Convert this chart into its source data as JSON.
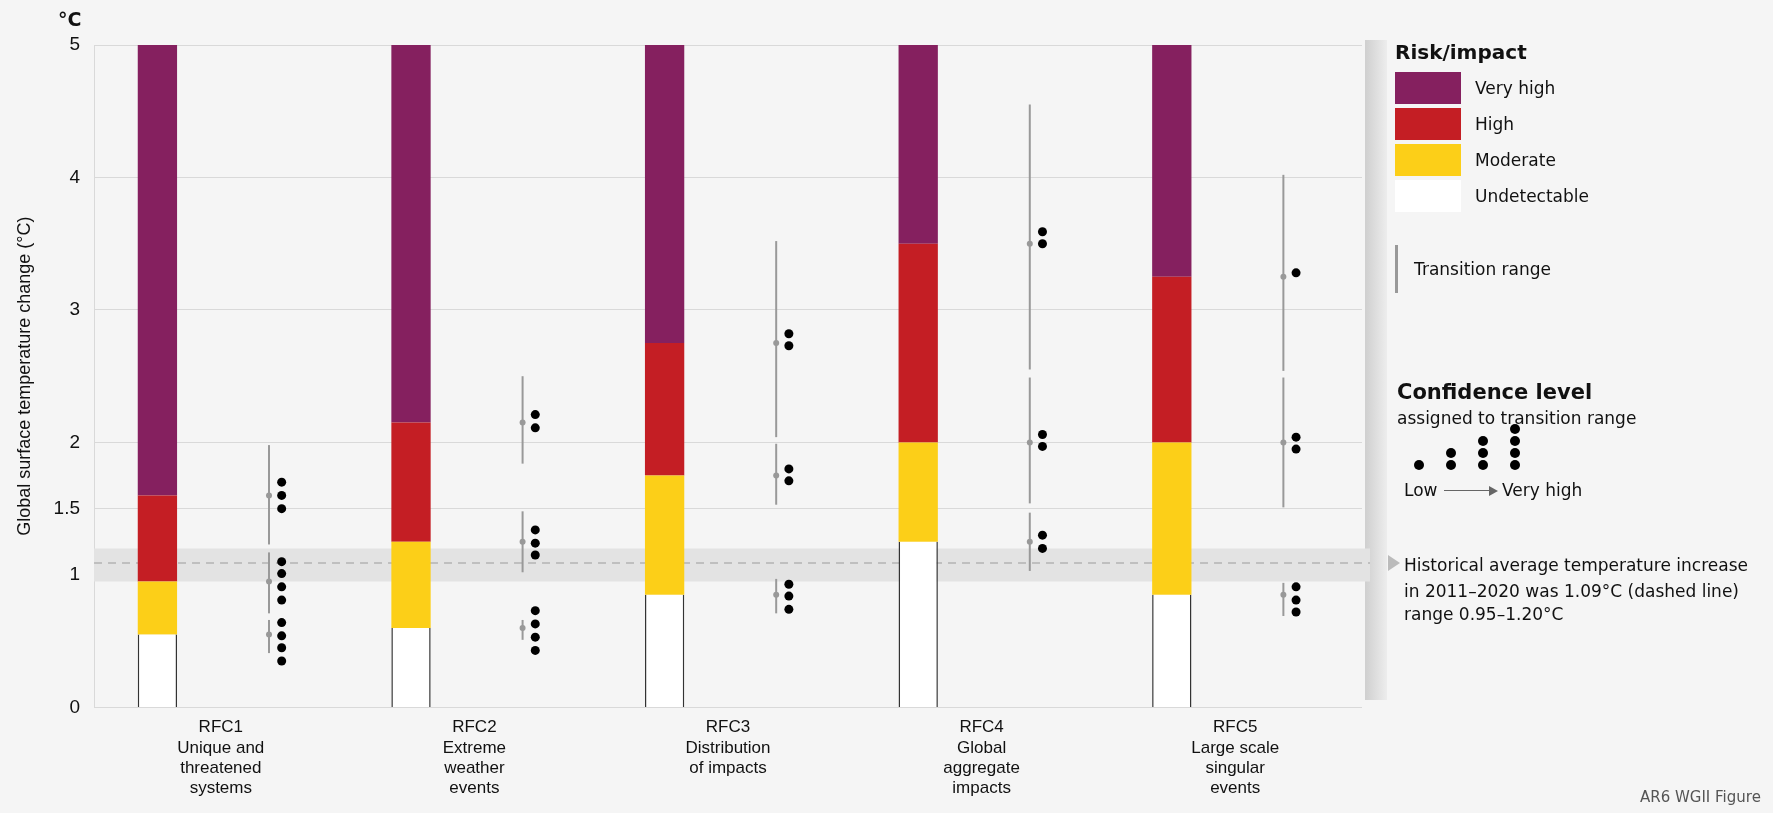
{
  "chart_data": {
    "type": "bar",
    "stacked": true,
    "ylabel": "Global surface temperature change (°C)",
    "legend_title": "Risk/impact",
    "legend": "right",
    "grid": "y",
    "categories": [
      "RFC1\nUnique and\nthreatened\nsystems",
      "RFC2\nExtreme\nweather\nevents",
      "RFC3\nDistribution\nof impacts",
      "RFC4\nGlobal\naggregate\nimpacts",
      "RFC5\nLarge scale\nsingular\nevents"
    ],
    "ylim": [
      0,
      5
    ],
    "yticks": [
      0,
      1,
      1.5,
      2,
      3,
      4,
      5
    ],
    "series": [
      {
        "name": "Undetectable",
        "color": "#ffffff",
        "values": [
          0.55,
          0.6,
          0.85,
          1.25,
          0.85
        ]
      },
      {
        "name": "Moderate",
        "color": "#fccf18",
        "values": [
          0.4,
          0.65,
          0.9,
          0.75,
          1.15
        ]
      },
      {
        "name": "High",
        "color": "#c41e24",
        "values": [
          0.65,
          0.9,
          1.0,
          1.5,
          1.25
        ]
      },
      {
        "name": "Very high",
        "color": "#85205f",
        "values": [
          3.4,
          2.85,
          2.25,
          1.5,
          1.75
        ]
      },
      {
        "name": "Transition range",
        "type": "scatter",
        "color": "#999999",
        "marker": "circle",
        "x": [
          "RFC1\nUnique and\nthreatened\nsystems",
          "RFC1\nUnique and\nthreatened\nsystems",
          "RFC1\nUnique and\nthreatened\nsystems",
          "RFC2\nExtreme\nweather\nevents",
          "RFC2\nExtreme\nweather\nevents",
          "RFC2\nExtreme\nweather\nevents",
          "RFC3\nDistribution\nof impacts",
          "RFC3\nDistribution\nof impacts",
          "RFC3\nDistribution\nof impacts",
          "RFC4\nGlobal\naggregate\nimpacts",
          "RFC4\nGlobal\naggregate\nimpacts",
          "RFC4\nGlobal\naggregate\nimpacts",
          "RFC5\nLarge scale\nsingular\nevents",
          "RFC5\nLarge scale\nsingular\nevents",
          "RFC5\nLarge scale\nsingular\nevents"
        ],
        "values": [
          1.6,
          0.95,
          0.55,
          2.15,
          1.25,
          0.6,
          2.75,
          1.75,
          0.85,
          3.5,
          2.0,
          1.25,
          3.25,
          2.0,
          0.85
        ],
        "errors": [
          [
            1.23,
            1.98
          ],
          [
            0.71,
            1.17
          ],
          [
            0.41,
            0.66
          ],
          [
            1.84,
            2.5
          ],
          [
            1.02,
            1.48
          ],
          [
            0.51,
            0.66
          ],
          [
            2.04,
            3.52
          ],
          [
            1.53,
            1.99
          ],
          [
            0.71,
            0.97
          ],
          [
            2.55,
            4.55
          ],
          [
            1.54,
            2.49
          ],
          [
            1.03,
            1.47
          ],
          [
            2.54,
            4.02
          ],
          [
            1.51,
            2.49
          ],
          [
            0.69,
            0.94
          ]
        ]
      },
      {
        "type": "scatter",
        "color": "#000000",
        "marker": "circle",
        "x": [
          "RFC1\nUnique and\nthreatened\nsystems",
          "RFC1\nUnique and\nthreatened\nsystems",
          "RFC1\nUnique and\nthreatened\nsystems",
          "RFC1\nUnique and\nthreatened\nsystems",
          "RFC1\nUnique and\nthreatened\nsystems",
          "RFC1\nUnique and\nthreatened\nsystems",
          "RFC1\nUnique and\nthreatened\nsystems",
          "RFC1\nUnique and\nthreatened\nsystems",
          "RFC1\nUnique and\nthreatened\nsystems",
          "RFC1\nUnique and\nthreatened\nsystems",
          "RFC1\nUnique and\nthreatened\nsystems",
          "RFC2\nExtreme\nweather\nevents",
          "RFC2\nExtreme\nweather\nevents",
          "RFC2\nExtreme\nweather\nevents",
          "RFC2\nExtreme\nweather\nevents",
          "RFC2\nExtreme\nweather\nevents",
          "RFC2\nExtreme\nweather\nevents",
          "RFC2\nExtreme\nweather\nevents",
          "RFC2\nExtreme\nweather\nevents",
          "RFC2\nExtreme\nweather\nevents",
          "RFC3\nDistribution\nof impacts",
          "RFC3\nDistribution\nof impacts",
          "RFC3\nDistribution\nof impacts",
          "RFC3\nDistribution\nof impacts",
          "RFC3\nDistribution\nof impacts",
          "RFC3\nDistribution\nof impacts",
          "RFC3\nDistribution\nof impacts",
          "RFC4\nGlobal\naggregate\nimpacts",
          "RFC4\nGlobal\naggregate\nimpacts",
          "RFC4\nGlobal\naggregate\nimpacts",
          "RFC4\nGlobal\naggregate\nimpacts",
          "RFC4\nGlobal\naggregate\nimpacts",
          "RFC4\nGlobal\naggregate\nimpacts",
          "RFC5\nLarge scale\nsingular\nevents",
          "RFC5\nLarge scale\nsingular\nevents",
          "RFC5\nLarge scale\nsingular\nevents",
          "RFC5\nLarge scale\nsingular\nevents",
          "RFC5\nLarge scale\nsingular\nevents",
          "RFC5\nLarge scale\nsingular\nevents"
        ],
        "values": [
          1.7,
          1.6,
          1.5,
          1.1,
          1.01,
          0.91,
          0.81,
          0.64,
          0.54,
          0.45,
          0.35,
          2.21,
          2.11,
          1.34,
          1.24,
          1.15,
          0.73,
          0.63,
          0.53,
          0.43,
          2.82,
          2.73,
          1.8,
          1.71,
          0.93,
          0.84,
          0.74,
          3.59,
          3.5,
          2.06,
          1.97,
          1.3,
          1.2,
          3.28,
          2.04,
          1.95,
          0.91,
          0.81,
          0.72
        ]
      }
    ],
    "ref_lines": [
      {
        "axis": "y",
        "value": 1.09,
        "label": "Historical average temperature increase in 2011–2020 was 1.09°C (dashed line)",
        "line_style": "dashed",
        "color": "#b4b4b4"
      }
    ],
    "bands": [
      {
        "axis": "y",
        "from": 0.95,
        "to": 1.2,
        "label": "range 0.95–1.20°C",
        "color": "#e3e3e3"
      }
    ],
    "annotations": [
      "°C",
      "Confidence level",
      "assigned to transition range",
      "Low",
      "Very high",
      "AR6 WGII Figure"
    ]
  }
}
